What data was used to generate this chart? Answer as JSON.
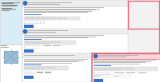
{
  "bg": "#f2f2f2",
  "white": "#ffffff",
  "light_blue": "#cce4f7",
  "light_blue2": "#d8edf8",
  "gray_border": "#d0d0d0",
  "gray_text": "#b0b0b0",
  "dark_text": "#666666",
  "med_text": "#999999",
  "blue_circle": "#2a6db5",
  "blue_submit": "#3a72c4",
  "blue_link": "#4477cc",
  "toolbar_bg": "#e8e8e8",
  "toolbar_btn": "#d8d8d8",
  "input_bg": "#ffffff",
  "pink_border": "#e8687a",
  "pink_fill": "#fde8ec",
  "pink_header": "#fad4dc",
  "fig_blue": "#9bbdd4",
  "fig_dark": "#6a9ab8",
  "section_header": "#eeeeee",
  "section_header2": "#e8e8e8",
  "green_submit": "#4a90d9"
}
